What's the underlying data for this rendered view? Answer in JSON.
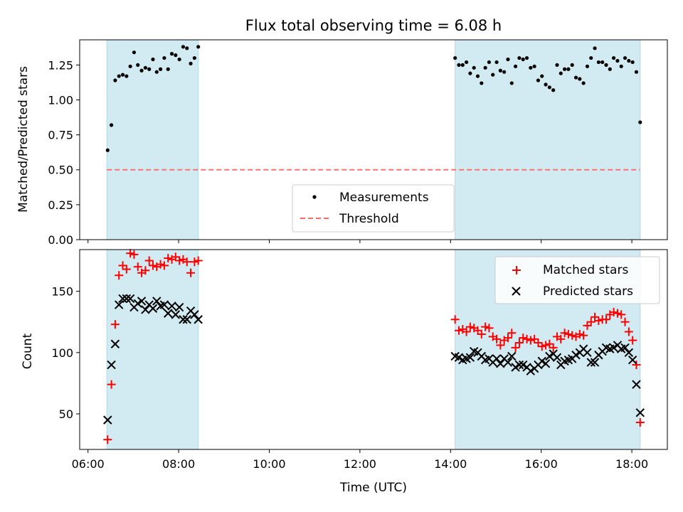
{
  "chart_data": [
    {
      "type": "scatter",
      "title": "Flux total observing time = 6.08 h",
      "xlabel": "",
      "ylabel": "Matched/Predicted stars",
      "xlim": [
        "05:49",
        "18:47"
      ],
      "ylim": [
        0.0,
        1.43
      ],
      "yticks": [
        "0.00",
        "0.25",
        "0.50",
        "0.75",
        "1.00",
        "1.25"
      ],
      "x_tick_marks": [
        "06:00",
        "08:00",
        "10:00",
        "12:00",
        "14:00",
        "16:00",
        "18:00"
      ],
      "observing_intervals": [
        [
          "06:25",
          "08:26"
        ],
        [
          "14:06",
          "18:11"
        ]
      ],
      "threshold": 0.5,
      "legend": {
        "placement": "lower center",
        "entries": [
          "Measurements",
          "Threshold"
        ]
      },
      "colors": {
        "measurements": "#000000",
        "threshold": "#ff6b6b",
        "interval": "#add8e6"
      },
      "series": [
        {
          "name": "Measurements",
          "x": [
            "06:26",
            "06:31",
            "06:36",
            "06:41",
            "06:46",
            "06:51",
            "06:56",
            "07:01",
            "07:06",
            "07:11",
            "07:16",
            "07:21",
            "07:26",
            "07:31",
            "07:36",
            "07:41",
            "07:46",
            "07:51",
            "07:56",
            "08:01",
            "08:06",
            "08:11",
            "08:16",
            "08:21",
            "08:26",
            "14:06",
            "14:11",
            "14:16",
            "14:21",
            "14:26",
            "14:31",
            "14:36",
            "14:41",
            "14:46",
            "14:51",
            "14:56",
            "15:01",
            "15:06",
            "15:11",
            "15:16",
            "15:21",
            "15:26",
            "15:31",
            "15:36",
            "15:41",
            "15:46",
            "15:51",
            "15:56",
            "16:01",
            "16:06",
            "16:11",
            "16:16",
            "16:21",
            "16:26",
            "16:31",
            "16:36",
            "16:41",
            "16:46",
            "16:51",
            "16:56",
            "17:01",
            "17:06",
            "17:11",
            "17:16",
            "17:21",
            "17:26",
            "17:31",
            "17:36",
            "17:41",
            "17:46",
            "17:51",
            "17:56",
            "18:01",
            "18:06",
            "18:11"
          ],
          "values": [
            0.64,
            0.82,
            1.14,
            1.17,
            1.18,
            1.17,
            1.24,
            1.34,
            1.25,
            1.21,
            1.23,
            1.22,
            1.29,
            1.2,
            1.22,
            1.3,
            1.22,
            1.33,
            1.32,
            1.29,
            1.38,
            1.37,
            1.26,
            1.3,
            1.38,
            1.3,
            1.25,
            1.25,
            1.27,
            1.19,
            1.23,
            1.17,
            1.12,
            1.23,
            1.27,
            1.18,
            1.27,
            1.21,
            1.2,
            1.29,
            1.12,
            1.24,
            1.3,
            1.29,
            1.3,
            1.23,
            1.24,
            1.14,
            1.17,
            1.11,
            1.09,
            1.07,
            1.25,
            1.19,
            1.22,
            1.22,
            1.25,
            1.16,
            1.15,
            1.12,
            1.24,
            1.3,
            1.37,
            1.27,
            1.27,
            1.25,
            1.22,
            1.3,
            1.28,
            1.24,
            1.3,
            1.28,
            1.27,
            1.2,
            0.84
          ]
        }
      ]
    },
    {
      "type": "scatter",
      "title": "",
      "xlabel": "Time (UTC)",
      "ylabel": "Count",
      "xlim": [
        "05:49",
        "18:47"
      ],
      "ylim": [
        21,
        184
      ],
      "yticks": [
        "50",
        "100",
        "150"
      ],
      "xticks": [
        "06:00",
        "08:00",
        "10:00",
        "12:00",
        "14:00",
        "16:00",
        "18:00"
      ],
      "observing_intervals": [
        [
          "06:25",
          "08:26"
        ],
        [
          "14:06",
          "18:11"
        ]
      ],
      "legend": {
        "placement": "upper right",
        "entries": [
          "Matched stars",
          "Predicted stars"
        ]
      },
      "colors": {
        "matched": "#ff0000",
        "predicted": "#000000",
        "interval": "#add8e6"
      },
      "x": [
        "06:26",
        "06:31",
        "06:36",
        "06:41",
        "06:46",
        "06:51",
        "06:56",
        "07:01",
        "07:06",
        "07:11",
        "07:16",
        "07:21",
        "07:26",
        "07:31",
        "07:36",
        "07:41",
        "07:46",
        "07:51",
        "07:56",
        "08:01",
        "08:06",
        "08:11",
        "08:16",
        "08:21",
        "08:26",
        "14:06",
        "14:11",
        "14:16",
        "14:21",
        "14:26",
        "14:31",
        "14:36",
        "14:41",
        "14:46",
        "14:51",
        "14:56",
        "15:01",
        "15:06",
        "15:11",
        "15:16",
        "15:21",
        "15:26",
        "15:31",
        "15:36",
        "15:41",
        "15:46",
        "15:51",
        "15:56",
        "16:01",
        "16:06",
        "16:11",
        "16:16",
        "16:21",
        "16:26",
        "16:31",
        "16:36",
        "16:41",
        "16:46",
        "16:51",
        "16:56",
        "17:01",
        "17:06",
        "17:11",
        "17:16",
        "17:21",
        "17:26",
        "17:31",
        "17:36",
        "17:41",
        "17:46",
        "17:51",
        "17:56",
        "18:01",
        "18:06",
        "18:11"
      ],
      "series": [
        {
          "name": "Matched stars",
          "marker": "+",
          "values": [
            29,
            74,
            123,
            163,
            171,
            168,
            181,
            180,
            170,
            165,
            167,
            175,
            171,
            170,
            172,
            171,
            177,
            176,
            178,
            175,
            176,
            174,
            165,
            174,
            175,
            127,
            118,
            119,
            117,
            121,
            120,
            118,
            115,
            121,
            120,
            113,
            111,
            106,
            110,
            112,
            116,
            104,
            108,
            112,
            111,
            110,
            111,
            108,
            105,
            106,
            107,
            104,
            113,
            111,
            116,
            115,
            114,
            113,
            115,
            114,
            122,
            125,
            129,
            126,
            127,
            127,
            131,
            133,
            132,
            131,
            125,
            117,
            110,
            90,
            43
          ]
        },
        {
          "name": "Predicted stars",
          "marker": "x",
          "values": [
            45,
            90,
            107,
            139,
            144,
            144,
            144,
            137,
            140,
            142,
            135,
            139,
            136,
            142,
            138,
            139,
            132,
            138,
            131,
            137,
            127,
            127,
            134,
            131,
            127,
            97,
            96,
            94,
            95,
            96,
            101,
            100,
            97,
            94,
            95,
            92,
            95,
            91,
            95,
            92,
            97,
            88,
            90,
            90,
            88,
            85,
            87,
            90,
            93,
            91,
            97,
            99,
            96,
            90,
            93,
            94,
            95,
            98,
            100,
            103,
            100,
            92,
            92,
            98,
            101,
            104,
            103,
            104,
            106,
            103,
            104,
            100,
            94,
            74,
            51
          ]
        }
      ]
    }
  ]
}
